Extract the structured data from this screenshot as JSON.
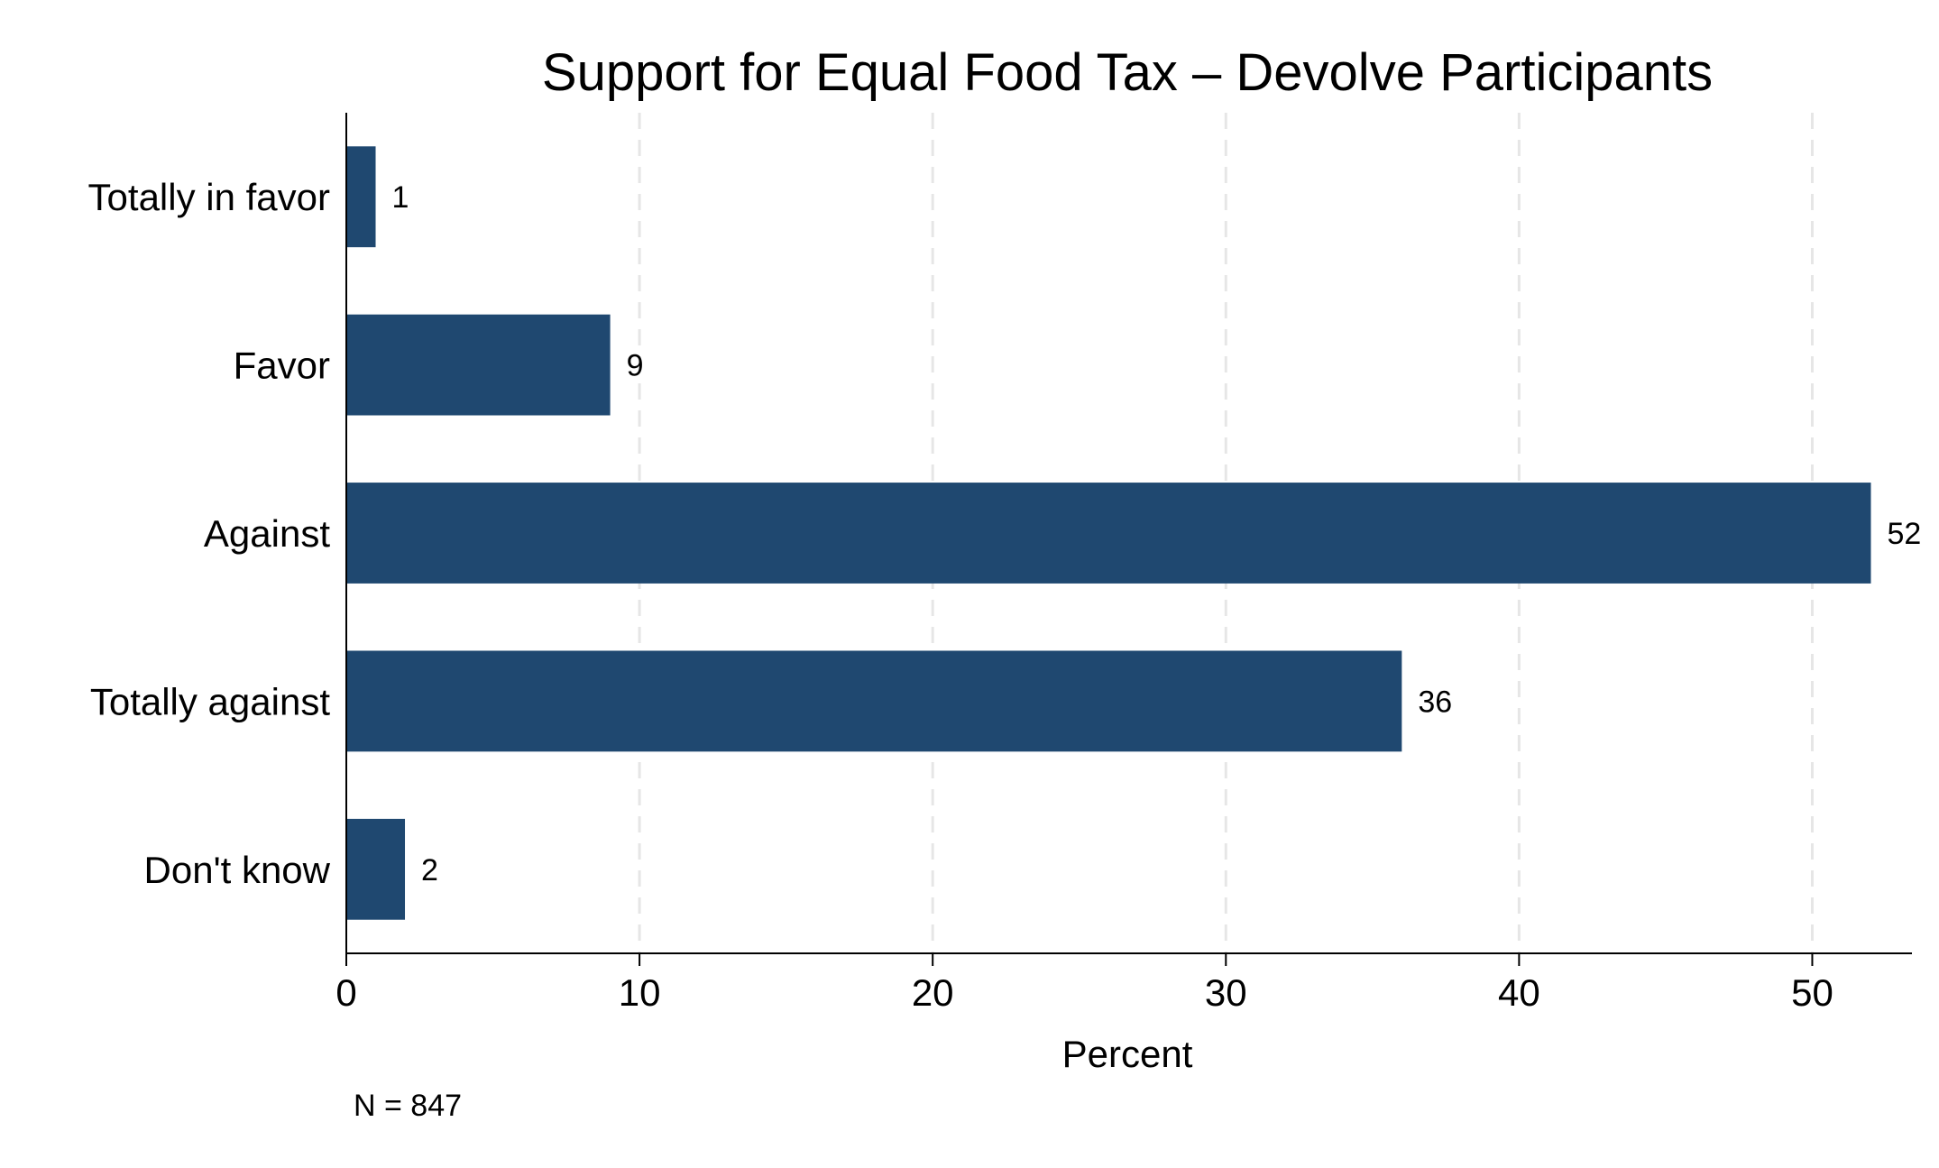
{
  "chart_data": {
    "type": "bar",
    "orientation": "horizontal",
    "title": "Support for Equal Food Tax – Devolve Participants",
    "categories": [
      "Totally in favor",
      "Favor",
      "Against",
      "Totally against",
      "Don't know"
    ],
    "values": [
      1,
      9,
      52,
      36,
      2
    ],
    "data_labels": [
      "1",
      "9",
      "52",
      "36",
      "2"
    ],
    "xlabel": "Percent",
    "ylabel": "",
    "xlim": [
      0,
      53.4
    ],
    "x_ticks": [
      0,
      10,
      20,
      30,
      40,
      50
    ],
    "x_tick_labels": [
      "0",
      "10",
      "20",
      "30",
      "40",
      "50"
    ],
    "grid": "vertical dashed",
    "note": "N = 847",
    "colors": {
      "bar": "#1f4870",
      "grid": "#e6e6e6",
      "axis": "#000000",
      "background": "#ffffff"
    }
  }
}
